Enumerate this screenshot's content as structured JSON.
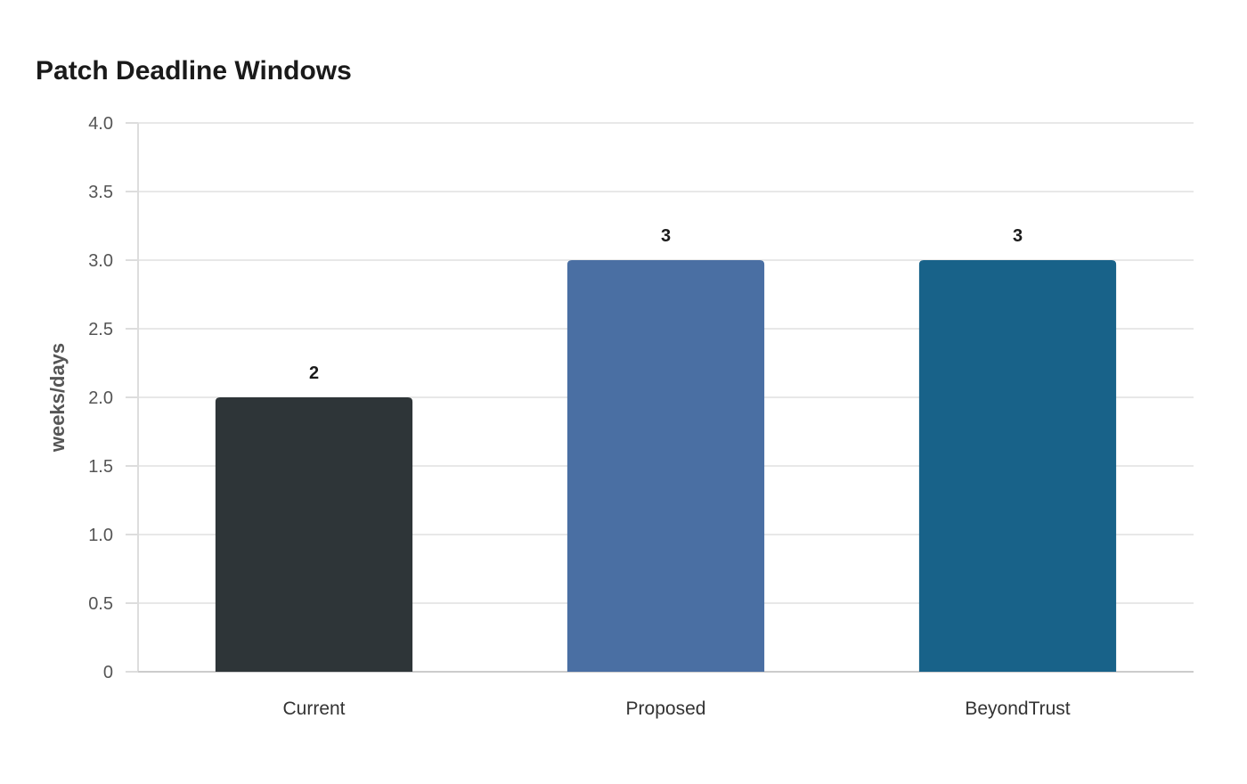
{
  "chart_data": {
    "type": "bar",
    "title": "Patch Deadline Windows",
    "xlabel": "",
    "ylabel": "weeks/days",
    "categories": [
      "Current",
      "Proposed",
      "BeyondTrust"
    ],
    "values": [
      2,
      3,
      3
    ],
    "value_labels": [
      "2",
      "3",
      "3"
    ],
    "colors": [
      "#2e3538",
      "#4a6fa3",
      "#186289"
    ],
    "ylim": [
      0,
      4
    ],
    "yticks": [
      0,
      0.5,
      1,
      1.5,
      2,
      2.5,
      3,
      3.5,
      4
    ],
    "ytick_labels": [
      "0",
      "0.5",
      "1.0",
      "1.5",
      "2.0",
      "2.5",
      "3.0",
      "3.5",
      "4.0"
    ],
    "grid": true,
    "legend": "none"
  }
}
